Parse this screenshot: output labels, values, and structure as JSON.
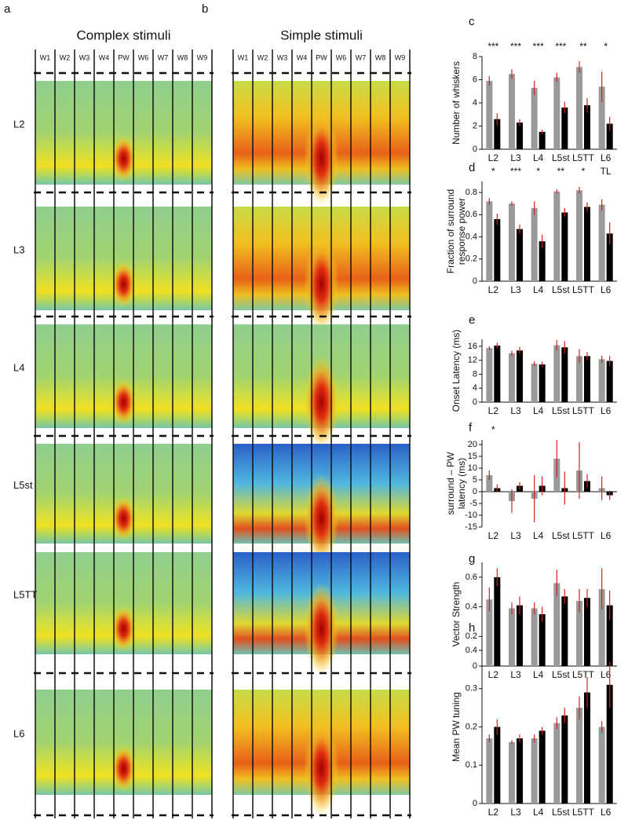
{
  "panels": [
    {
      "letter": "a",
      "title": "Complex stimuli"
    },
    {
      "letter": "b",
      "title": "Simple stimuli"
    }
  ],
  "whiskers": [
    "W1",
    "W2",
    "W3",
    "W4",
    "PW",
    "W6",
    "W7",
    "W8",
    "W9"
  ],
  "layers": [
    "L2",
    "L3",
    "L4",
    "L5st",
    "L5TT",
    "L6"
  ],
  "chart_data": [
    {
      "type": "bar",
      "letter": "c",
      "ylabel": [
        "Number of whiskers"
      ],
      "categories": [
        "L2",
        "L3",
        "L4",
        "L5st",
        "L5TT",
        "L6"
      ],
      "annotations": [
        "***",
        "***",
        "***",
        "***",
        "**",
        "*"
      ],
      "ylim": [
        0,
        8
      ],
      "yticks": [
        0,
        2,
        4,
        6,
        8
      ],
      "series": [
        {
          "color": "#9a9a9a",
          "values": [
            5.9,
            6.5,
            5.3,
            6.2,
            7.1,
            5.4
          ],
          "errors": [
            0.4,
            0.4,
            0.6,
            0.4,
            0.5,
            1.3
          ]
        },
        {
          "color": "#000000",
          "values": [
            2.6,
            2.3,
            1.5,
            3.6,
            3.8,
            2.2
          ],
          "errors": [
            0.5,
            0.3,
            0.2,
            0.5,
            0.6,
            0.6
          ]
        }
      ]
    },
    {
      "type": "bar",
      "letter": "d",
      "ylabel": [
        "Fraction of surround",
        "response power"
      ],
      "categories": [
        "L2",
        "L3",
        "L4",
        "L5st",
        "L5TT",
        "L6"
      ],
      "annotations": [
        "*",
        "***",
        "*",
        "**",
        "*",
        "TL"
      ],
      "ylim": [
        0,
        0.9
      ],
      "yticks": [
        0,
        0.2,
        0.4,
        0.6,
        0.8
      ],
      "series": [
        {
          "color": "#9a9a9a",
          "values": [
            0.72,
            0.7,
            0.66,
            0.81,
            0.82,
            0.69
          ],
          "errors": [
            0.03,
            0.02,
            0.06,
            0.02,
            0.03,
            0.05
          ]
        },
        {
          "color": "#000000",
          "values": [
            0.56,
            0.47,
            0.36,
            0.62,
            0.67,
            0.43
          ],
          "errors": [
            0.05,
            0.04,
            0.06,
            0.04,
            0.04,
            0.1
          ]
        }
      ]
    },
    {
      "type": "bar",
      "letter": "e",
      "ylabel": [
        "Onset Latency (ms)"
      ],
      "categories": [
        "L2",
        "L3",
        "L4",
        "L5st",
        "L5TT",
        "L6"
      ],
      "ylim": [
        0,
        18
      ],
      "yticks": [
        0,
        4,
        8,
        12,
        16
      ],
      "series": [
        {
          "color": "#9a9a9a",
          "values": [
            15.5,
            14,
            11,
            16.3,
            13.2,
            12.3
          ],
          "errors": [
            0.5,
            0.7,
            0.7,
            1.5,
            2,
            1
          ]
        },
        {
          "color": "#000000",
          "values": [
            16.2,
            14.8,
            10.8,
            15.7,
            13.2,
            11.8
          ],
          "errors": [
            0.8,
            1,
            0.8,
            1.8,
            1.2,
            1.4
          ]
        }
      ]
    },
    {
      "type": "bar",
      "letter": "f",
      "ylabel": [
        "surround – PW",
        "latency (ms)"
      ],
      "categories": [
        "L2",
        "L3",
        "L4",
        "L5st",
        "L5TT",
        "L6"
      ],
      "annotations": [
        "*",
        null,
        null,
        null,
        null,
        null
      ],
      "ylim": [
        -15,
        22
      ],
      "yticks": [
        -15,
        -10,
        -5,
        0,
        5,
        10,
        15,
        20
      ],
      "series": [
        {
          "color": "#9a9a9a",
          "values": [
            7,
            -4,
            -3,
            14,
            9,
            1.5
          ],
          "errors": [
            2,
            5,
            10,
            8,
            12,
            5
          ]
        },
        {
          "color": "#000000",
          "values": [
            1.5,
            2.5,
            2.5,
            1.5,
            4.5,
            -1.5
          ],
          "errors": [
            1.5,
            1.5,
            4,
            7,
            3,
            2
          ]
        }
      ]
    },
    {
      "type": "bar",
      "letter": "g",
      "ylabel": [
        "Vector Strength"
      ],
      "categories": [
        "L2",
        "L3",
        "L4",
        "L5st",
        "L5TT",
        "L6"
      ],
      "ylim": [
        0,
        0.7
      ],
      "yticks": [
        0,
        0.2,
        0.4,
        0.6
      ],
      "series": [
        {
          "color": "#9a9a9a",
          "values": [
            0.45,
            0.39,
            0.39,
            0.56,
            0.44,
            0.52
          ],
          "errors": [
            0.08,
            0.04,
            0.04,
            0.09,
            0.08,
            0.14
          ]
        },
        {
          "color": "#000000",
          "values": [
            0.6,
            0.41,
            0.35,
            0.47,
            0.46,
            0.41
          ],
          "errors": [
            0.06,
            0.06,
            0.05,
            0.05,
            0.06,
            0.1
          ]
        }
      ]
    },
    {
      "type": "bar",
      "letter": "h",
      "ylabel": [
        "Mean PW tuning"
      ],
      "categories": [
        "L2",
        "L3",
        "L4",
        "L5st",
        "L5TT",
        "L6"
      ],
      "ylim": [
        0,
        0.4
      ],
      "yticks": [
        0,
        0.1,
        0.2,
        0.3,
        0.4
      ],
      "series": [
        {
          "color": "#9a9a9a",
          "values": [
            0.17,
            0.16,
            0.17,
            0.21,
            0.25,
            0.2
          ],
          "errors": [
            0.01,
            0.005,
            0.01,
            0.015,
            0.03,
            0.015
          ]
        },
        {
          "color": "#000000",
          "values": [
            0.2,
            0.17,
            0.19,
            0.23,
            0.29,
            0.31
          ],
          "errors": [
            0.02,
            0.01,
            0.01,
            0.02,
            0.04,
            0.06
          ]
        }
      ]
    }
  ]
}
